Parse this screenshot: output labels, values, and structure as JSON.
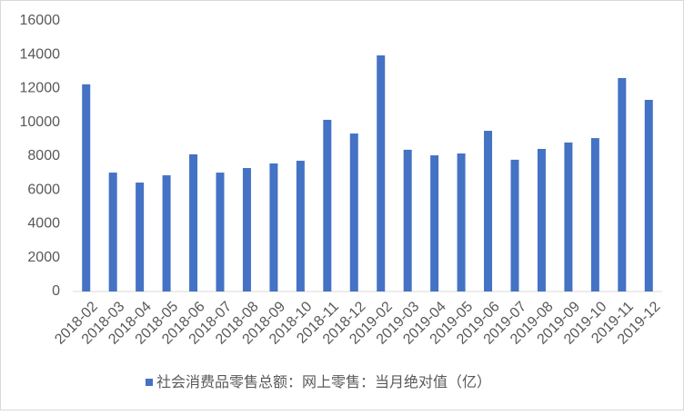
{
  "chart_data": {
    "type": "bar",
    "categories": [
      "2018-02",
      "2018-03",
      "2018-04",
      "2018-05",
      "2018-06",
      "2018-07",
      "2018-08",
      "2018-09",
      "2018-10",
      "2018-11",
      "2018-12",
      "2019-02",
      "2019-03",
      "2019-04",
      "2019-05",
      "2019-06",
      "2019-07",
      "2019-08",
      "2019-09",
      "2019-10",
      "2019-11",
      "2019-12"
    ],
    "series": [
      {
        "name": "社会消费品零售总额：网上零售：当月绝对值（亿）",
        "color": "#4472c4",
        "values": [
          12250,
          7030,
          6440,
          6870,
          8110,
          7030,
          7300,
          7570,
          7730,
          10150,
          9340,
          13960,
          8380,
          8050,
          8160,
          9500,
          7790,
          8430,
          8810,
          9070,
          12620,
          11330
        ]
      }
    ],
    "ylim": [
      0,
      16000
    ],
    "yticks": [
      0,
      2000,
      4000,
      6000,
      8000,
      10000,
      12000,
      14000,
      16000
    ],
    "legend": "bottom"
  }
}
